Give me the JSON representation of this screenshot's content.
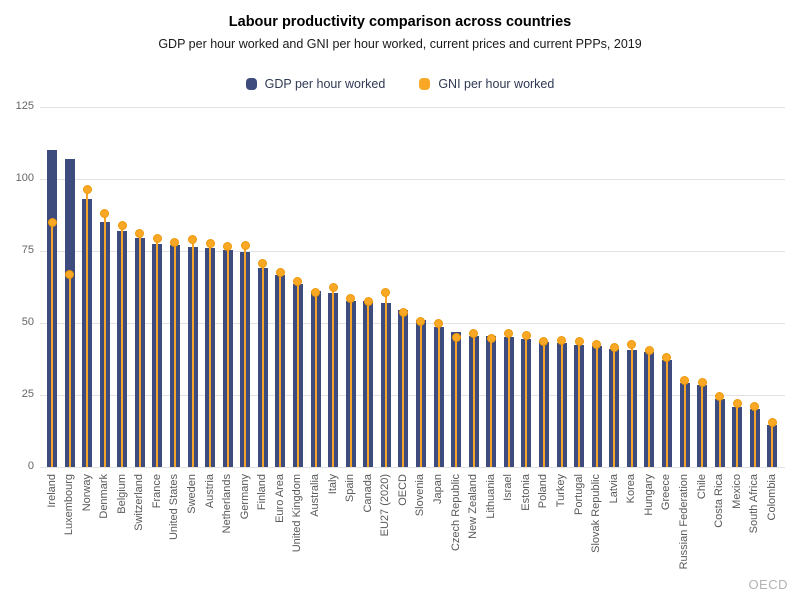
{
  "header": {
    "title": "Labour productivity comparison across countries",
    "subtitle": "GDP per hour worked and GNI per hour worked, current prices and current PPPs, 2019"
  },
  "watermark": "OECD",
  "colors": {
    "bar": "#3d4c7d",
    "dot": "#f9a825",
    "dot_border": "#ef9708",
    "stem": "#f7a52a",
    "gridline": "#e2e2e2",
    "axis_text": "#666666",
    "category_text": "#595959",
    "legend_text": "#2f3a54",
    "watermark_text": "#b3b3b3",
    "background": "#ffffff"
  },
  "chart_data": {
    "type": "bar",
    "title": "Labour productivity comparison across countries",
    "subtitle": "GDP per hour worked and GNI per hour worked, current prices and current PPPs, 2019",
    "xlabel": "",
    "ylabel": "",
    "ylim": [
      0,
      125
    ],
    "yticks": [
      0,
      25,
      50,
      75,
      100,
      125
    ],
    "grid": true,
    "legend_position": "top",
    "categories": [
      "Ireland",
      "Luxembourg",
      "Norway",
      "Denmark",
      "Belgium",
      "Switzerland",
      "France",
      "United States",
      "Sweden",
      "Austria",
      "Netherlands",
      "Germany",
      "Finland",
      "Euro Area",
      "United Kingdom",
      "Australia",
      "Italy",
      "Spain",
      "Canada",
      "EU27 (2020)",
      "OECD",
      "Slovenia",
      "Japan",
      "Czech Republic",
      "New Zealand",
      "Lithuania",
      "Israel",
      "Estonia",
      "Poland",
      "Turkey",
      "Portugal",
      "Slovak Republic",
      "Latvia",
      "Korea",
      "Hungary",
      "Greece",
      "Russian Federation",
      "Chile",
      "Costa Rica",
      "Mexico",
      "South Africa",
      "Colombia"
    ],
    "series": [
      {
        "name": "GDP per hour worked",
        "type": "bar",
        "color": "#3d4c7d",
        "values": [
          110,
          107,
          93,
          85,
          82,
          79.5,
          77.5,
          77,
          76.5,
          76,
          75.5,
          74.5,
          69,
          66.5,
          63.5,
          61,
          60.5,
          57.5,
          57.5,
          57,
          54.5,
          51,
          48.5,
          47,
          45.5,
          45.5,
          45,
          44.5,
          43.5,
          43,
          42.5,
          42,
          41,
          40.5,
          40,
          37,
          29,
          28.5,
          23.5,
          21,
          20,
          14.5
        ]
      },
      {
        "name": "GNI per hour worked",
        "type": "lollipop-dot",
        "color": "#f9a825",
        "values": [
          85,
          67,
          96.5,
          88,
          84,
          81,
          79.5,
          78,
          79,
          77.5,
          76.5,
          77,
          70.5,
          67.5,
          64.5,
          60.5,
          62.5,
          58.5,
          57.5,
          60.5,
          53.5,
          50.5,
          50,
          45,
          46.5,
          44.5,
          46.5,
          45.5,
          43.5,
          44,
          43.5,
          42.5,
          41.5,
          42.5,
          40.5,
          38,
          30,
          29.5,
          24.5,
          22,
          21,
          15.5
        ]
      }
    ]
  }
}
